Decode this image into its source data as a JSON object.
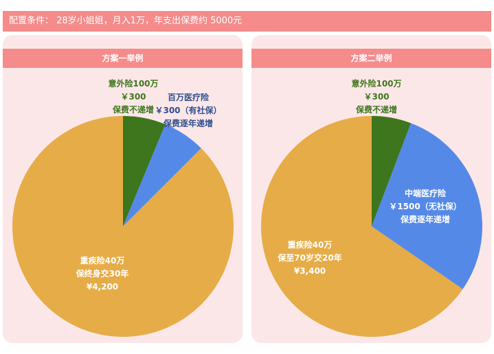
{
  "header": {
    "text": "配置条件： 28岁小姐姐，月入1万，年支出保费约 5000元"
  },
  "chart_data": [
    {
      "type": "pie",
      "title": "方案一举例",
      "slices": [
        {
          "label": [
            "意外险100万",
            "￥300",
            "保费不递增"
          ],
          "value": 300,
          "color": "#3d761c",
          "text_color": "#3d761c"
        },
        {
          "label": [
            "百万医疗险",
            "￥300（有社保）",
            "保费逐年递增"
          ],
          "value": 300,
          "color": "#5589e8",
          "text_color": "#2f4f8f"
        },
        {
          "label": [
            "重疾险40万",
            "保终身交30年",
            "¥4,200"
          ],
          "value": 4200,
          "color": "#e6ac47",
          "text_color": "#ffffff"
        }
      ]
    },
    {
      "type": "pie",
      "title": "方案二举例",
      "slices": [
        {
          "label": [
            "意外险100万",
            "￥300",
            "保费不递增"
          ],
          "value": 300,
          "color": "#3d761c",
          "text_color": "#3d761c"
        },
        {
          "label": [
            "中端医疗险",
            "￥1500（无社保）",
            "保费逐年递增"
          ],
          "value": 1500,
          "color": "#5589e8",
          "text_color": "#ffffff"
        },
        {
          "label": [
            "重疾险40万",
            "保至70岁交20年",
            "¥3,400"
          ],
          "value": 3400,
          "color": "#e6ac47",
          "text_color": "#ffffff"
        }
      ]
    }
  ]
}
